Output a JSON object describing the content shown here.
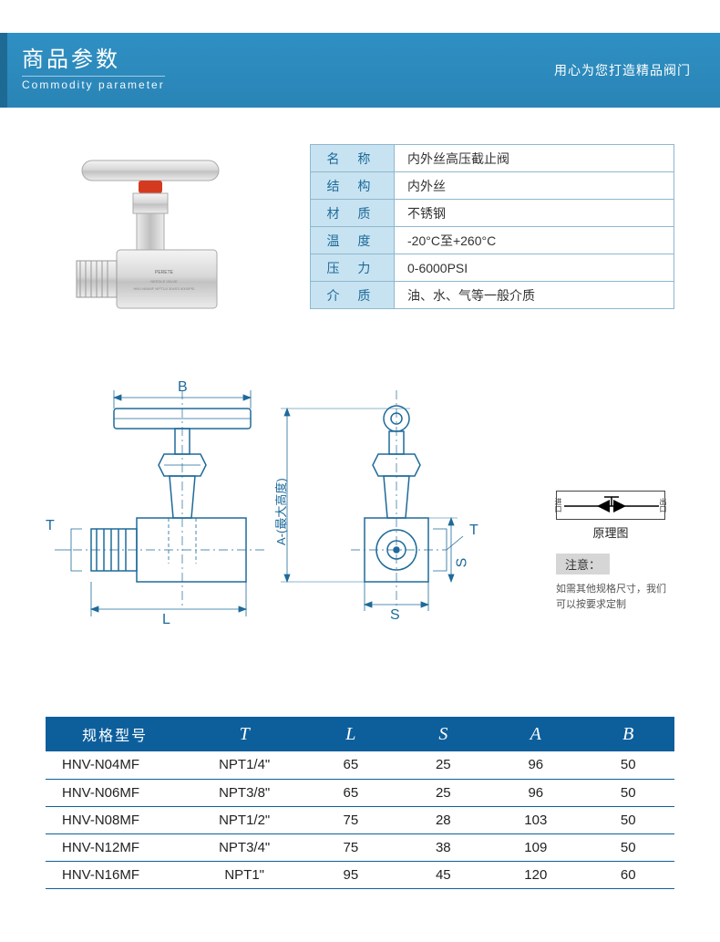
{
  "header": {
    "title_cn": "商品参数",
    "title_en": "Commodity parameter",
    "tagline": "用心为您打造精品阀门"
  },
  "specs": [
    {
      "label": "名 称",
      "value": "内外丝高压截止阀"
    },
    {
      "label": "结 构",
      "value": "内外丝"
    },
    {
      "label": "材 质",
      "value": "不锈钢"
    },
    {
      "label": "温 度",
      "value": "-20°C至+260°C"
    },
    {
      "label": "压 力",
      "value": "0-6000PSI"
    },
    {
      "label": "介 质",
      "value": "油、水、气等一般介质"
    }
  ],
  "diagram": {
    "labels": {
      "B": "B",
      "T": "T",
      "L": "L",
      "A": "A-(最大高度)",
      "S": "S",
      "T2": "T"
    },
    "schematic_caption": "原理图",
    "inlet": "进口",
    "outlet": "出口",
    "notice_label": "注意：",
    "notice_text": "如需其他规格尺寸，我们可以按要求定制"
  },
  "dim_table": {
    "headers": [
      "规格型号",
      "T",
      "L",
      "S",
      "A",
      "B"
    ],
    "rows": [
      [
        "HNV-N04MF",
        "NPT1/4\"",
        "65",
        "25",
        "96",
        "50"
      ],
      [
        "HNV-N06MF",
        "NPT3/8\"",
        "65",
        "25",
        "96",
        "50"
      ],
      [
        "HNV-N08MF",
        "NPT1/2\"",
        "75",
        "28",
        "103",
        "50"
      ],
      [
        "HNV-N12MF",
        "NPT3/4\"",
        "75",
        "38",
        "109",
        "50"
      ],
      [
        "HNV-N16MF",
        "NPT1\"",
        "95",
        "45",
        "120",
        "60"
      ]
    ]
  },
  "colors": {
    "header_bg": "#2f90c3",
    "spec_label_bg": "#c7e3f1",
    "spec_border": "#8fb7cf",
    "accent_blue": "#1e6a9a",
    "table_header_bg": "#0d5f9c",
    "handle_accent": "#d43a1f"
  }
}
